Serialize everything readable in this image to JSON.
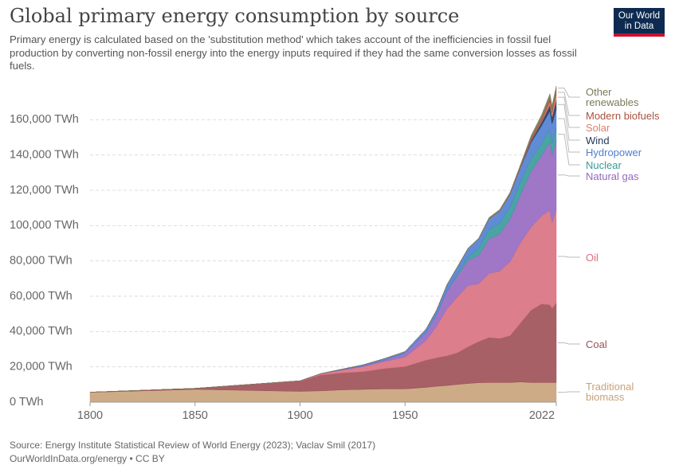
{
  "header": {
    "title": "Global primary energy consumption by source",
    "subtitle": "Primary energy is calculated based on the 'substitution method' which takes account of the inefficiencies in fossil fuel production by converting non-fossil energy into the energy inputs required if they had the same conversion losses as fossil fuels.",
    "logo": "Our World in Data"
  },
  "chart_data": {
    "type": "stacked-area",
    "x": [
      1800,
      1850,
      1900,
      1910,
      1920,
      1930,
      1940,
      1950,
      1960,
      1965,
      1970,
      1975,
      1980,
      1985,
      1990,
      1995,
      2000,
      2005,
      2010,
      2015,
      2019,
      2020,
      2022
    ],
    "xlim": [
      1800,
      2022
    ],
    "xticks": [
      1800,
      1850,
      1900,
      1950,
      2022
    ],
    "ylim": [
      0,
      180000
    ],
    "yticks": [
      {
        "value": 0,
        "label": "0 TWh"
      },
      {
        "value": 20000,
        "label": "20,000 TWh"
      },
      {
        "value": 40000,
        "label": "40,000 TWh"
      },
      {
        "value": 60000,
        "label": "60,000 TWh"
      },
      {
        "value": 80000,
        "label": "80,000 TWh"
      },
      {
        "value": 100000,
        "label": "100,000 TWh"
      },
      {
        "value": 120000,
        "label": "120,000 TWh"
      },
      {
        "value": 140000,
        "label": "140,000 TWh"
      },
      {
        "value": 160000,
        "label": "160,000 TWh"
      }
    ],
    "grid": true,
    "series": [
      {
        "name": "Traditional biomass",
        "color": "#c9a27a",
        "values": [
          5556,
          7222,
          6111,
          6389,
          6944,
          7222,
          7500,
          7500,
          8333,
          9000,
          9444,
          10000,
          10556,
          11000,
          11111,
          11111,
          11111,
          11400,
          11111,
          11111,
          11111,
          11111,
          11111
        ]
      },
      {
        "name": "Coal",
        "color": "#9c4f55",
        "values": [
          97,
          570,
          5728,
          9000,
          9600,
          10000,
          11500,
          12603,
          15442,
          16140,
          16800,
          18000,
          20800,
          23300,
          25500,
          25000,
          26500,
          33500,
          41000,
          44500,
          44000,
          42000,
          45000
        ]
      },
      {
        "name": "Oil",
        "color": "#d8707f",
        "values": [
          0,
          0,
          181,
          640,
          1600,
          2900,
          4000,
          5444,
          11100,
          17900,
          26700,
          31700,
          34800,
          32800,
          36400,
          38100,
          42000,
          45600,
          47000,
          50000,
          53600,
          48600,
          52900
        ]
      },
      {
        "name": "Natural gas",
        "color": "#9568c0",
        "values": [
          0,
          0,
          64,
          160,
          250,
          500,
          800,
          2092,
          4500,
          6400,
          10000,
          12000,
          14300,
          16000,
          19500,
          21000,
          24000,
          27200,
          31600,
          34300,
          38600,
          38200,
          39400
        ]
      },
      {
        "name": "Nuclear",
        "color": "#379a9a",
        "values": [
          0,
          0,
          0,
          0,
          0,
          0,
          0,
          0,
          0,
          50,
          200,
          1000,
          1800,
          3800,
          5300,
          6200,
          6800,
          7200,
          7200,
          6700,
          7100,
          6800,
          6700
        ]
      },
      {
        "name": "Hydropower",
        "color": "#4f7fd0",
        "values": [
          0,
          0,
          0,
          0,
          300,
          500,
          800,
          1000,
          2000,
          2600,
          3500,
          4000,
          4800,
          5500,
          6000,
          6700,
          7200,
          8000,
          9200,
          10000,
          10700,
          11000,
          11000
        ]
      },
      {
        "name": "Wind",
        "color": "#23395d",
        "values": [
          0,
          0,
          0,
          0,
          0,
          0,
          0,
          0,
          0,
          0,
          0,
          0,
          0,
          0,
          0,
          10,
          80,
          270,
          900,
          2000,
          3400,
          3800,
          5000
        ]
      },
      {
        "name": "Solar",
        "color": "#e0806d",
        "values": [
          0,
          0,
          0,
          0,
          0,
          0,
          0,
          0,
          0,
          0,
          0,
          0,
          0,
          0,
          0,
          0,
          0,
          0,
          90,
          640,
          1800,
          2200,
          3200
        ]
      },
      {
        "name": "Modern biofuels",
        "color": "#a9523f",
        "values": [
          0,
          0,
          0,
          0,
          0,
          0,
          0,
          0,
          0,
          0,
          0,
          0,
          0,
          0,
          200,
          200,
          250,
          450,
          1400,
          1700,
          2200,
          2000,
          2400
        ]
      },
      {
        "name": "Other renewables",
        "color": "#7a7a5a",
        "values": [
          0,
          0,
          0,
          0,
          0,
          0,
          0,
          0,
          0,
          0,
          100,
          150,
          200,
          400,
          600,
          700,
          900,
          1100,
          1500,
          1800,
          2200,
          2300,
          2400
        ]
      }
    ]
  },
  "footer": {
    "source": "Source: Energy Institute Statistical Review of World Energy (2023); Vaclav Smil (2017)",
    "license": "OurWorldInData.org/energy • CC BY"
  }
}
